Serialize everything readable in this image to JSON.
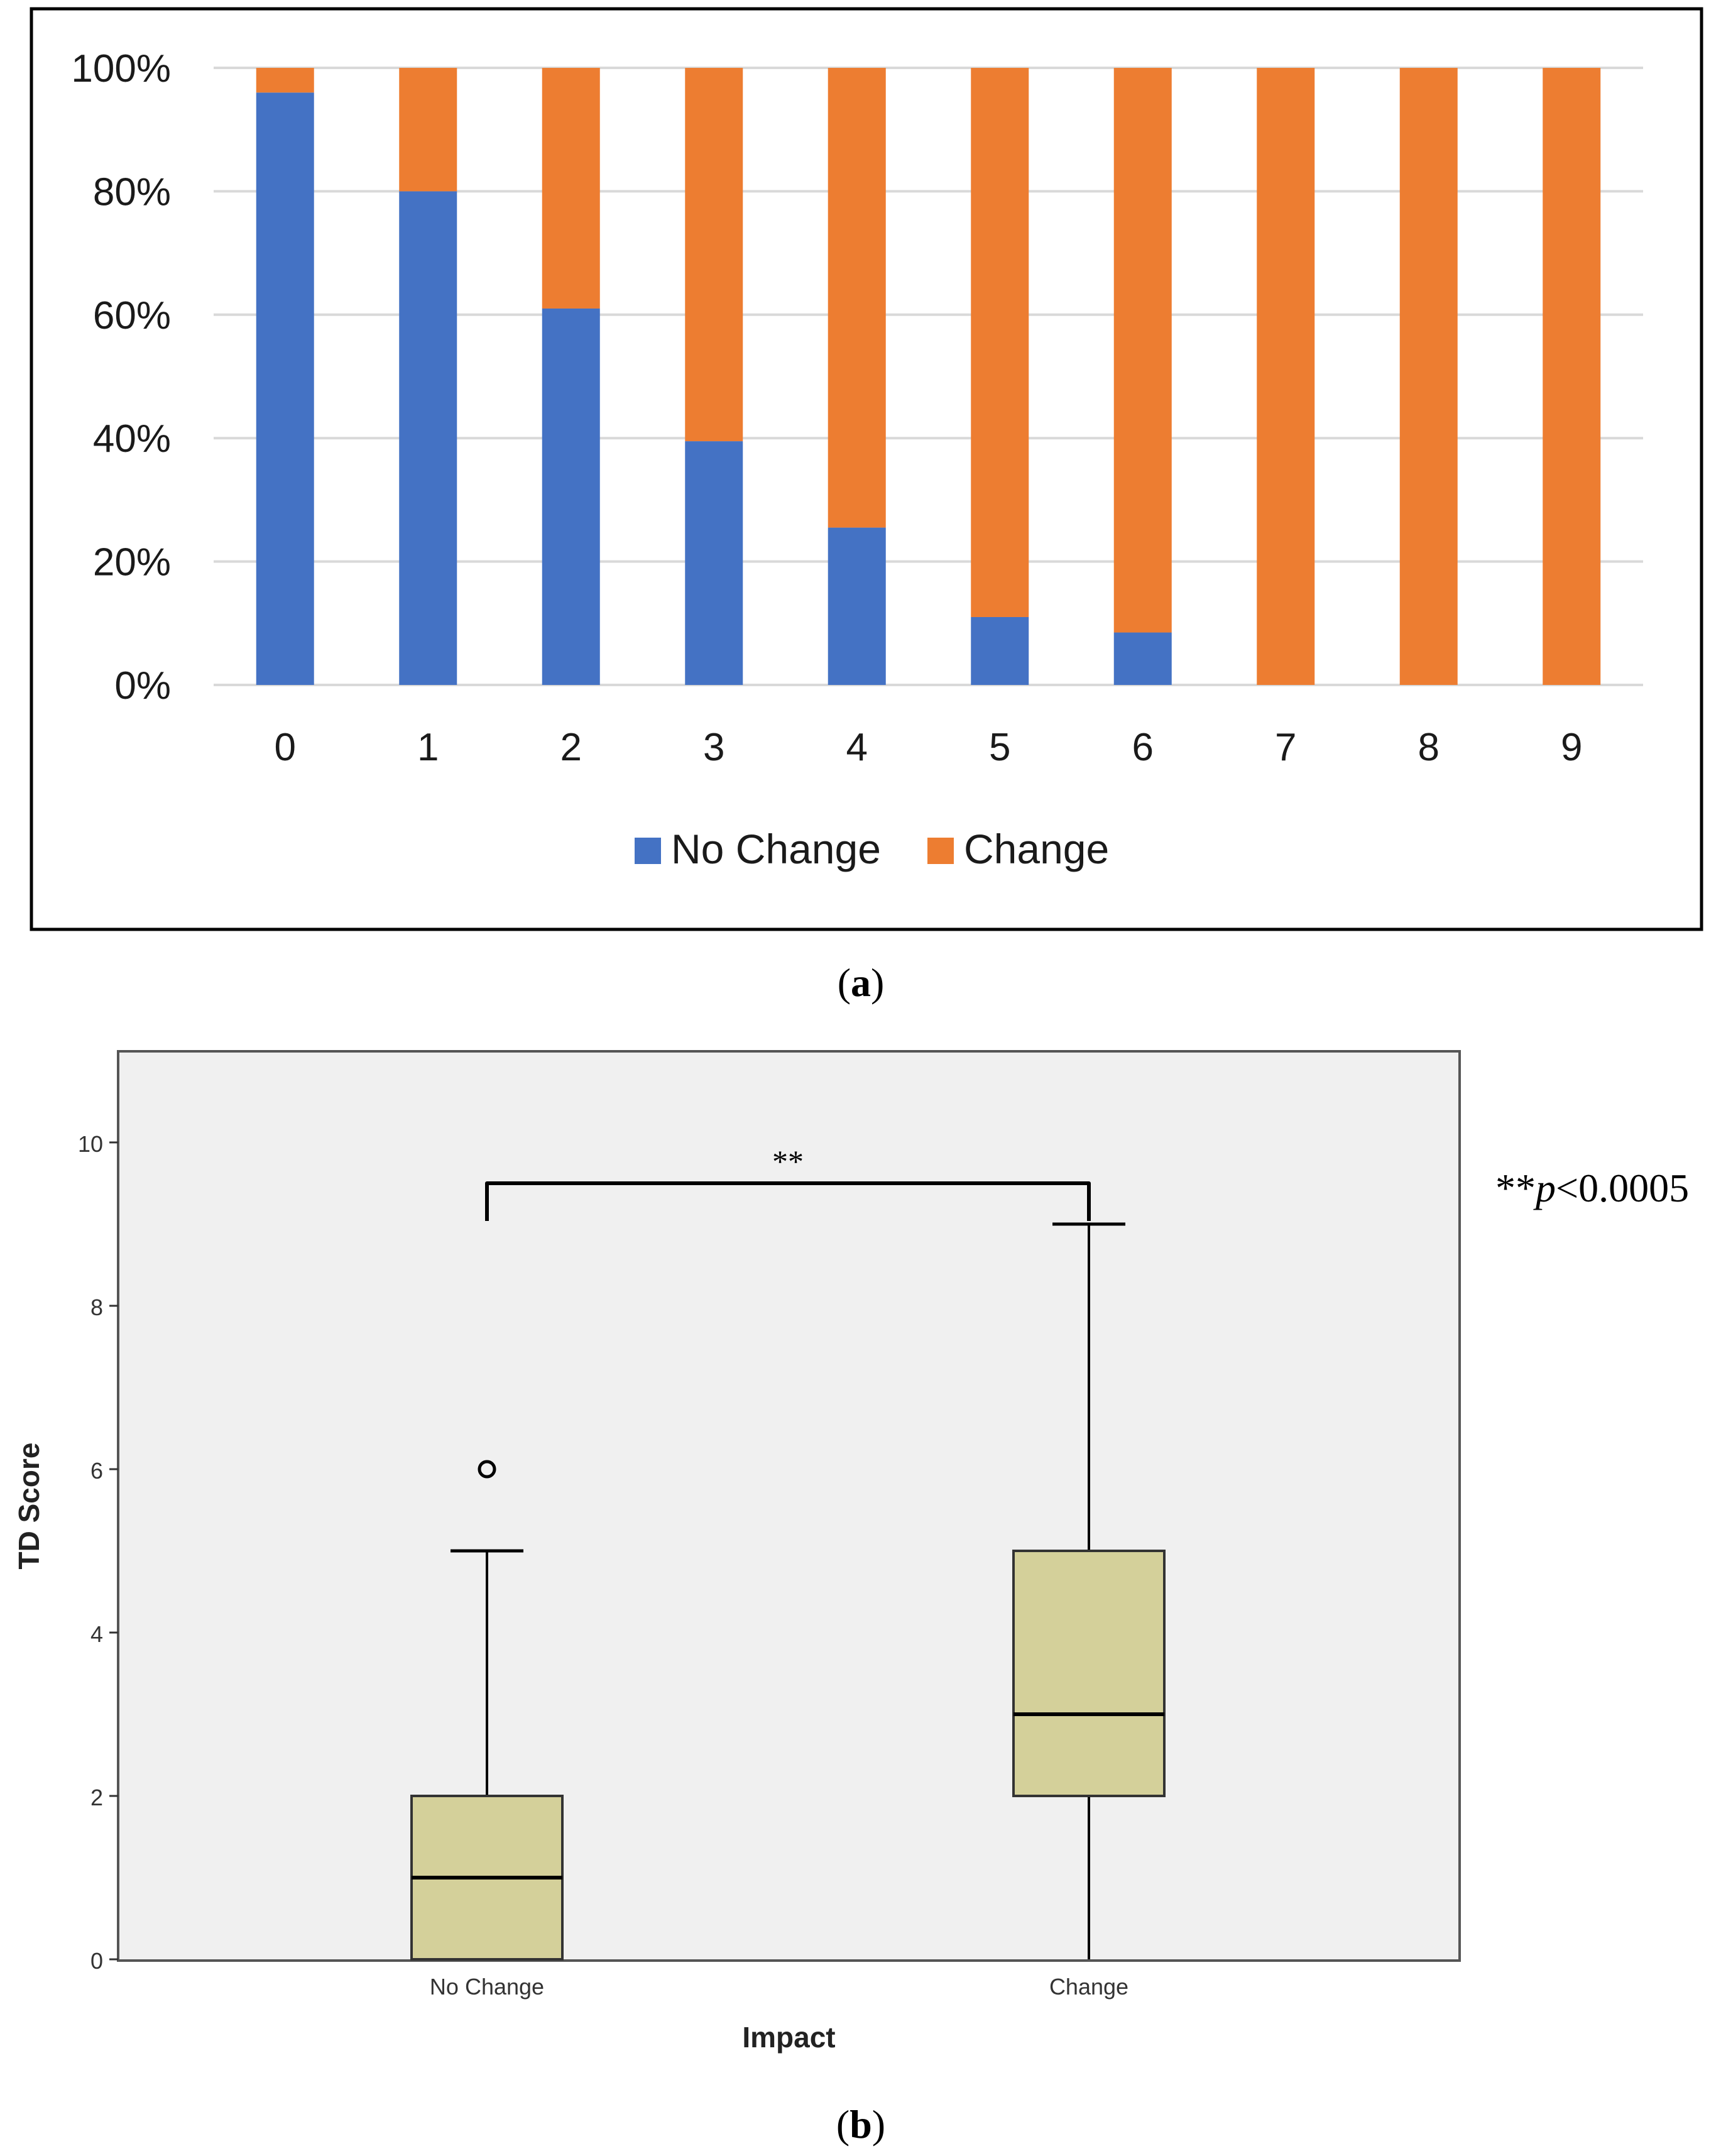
{
  "figure": {
    "panel_a_label_open": "(",
    "panel_a_label_letter": "a",
    "panel_a_label_close": ")",
    "panel_b_label_open": "(",
    "panel_b_label_letter": "b",
    "panel_b_label_close": ")"
  },
  "chart_data": [
    {
      "type": "bar",
      "stacked": true,
      "percent": true,
      "categories": [
        "0",
        "1",
        "2",
        "3",
        "4",
        "5",
        "6",
        "7",
        "8",
        "9"
      ],
      "series": [
        {
          "name": "No Change",
          "color": "#4472C4",
          "values": [
            96,
            80,
            61,
            39.5,
            25.5,
            11,
            8.5,
            0,
            0,
            0
          ]
        },
        {
          "name": "Change",
          "color": "#ED7D31",
          "values": [
            4,
            20,
            39,
            60.5,
            74.5,
            89,
            91.5,
            100,
            100,
            100
          ]
        }
      ],
      "ylim": [
        0,
        100
      ],
      "yticks": [
        "0%",
        "20%",
        "40%",
        "60%",
        "80%",
        "100%"
      ],
      "grid": true,
      "legend_position": "bottom-center",
      "title": "",
      "xlabel": "",
      "ylabel": ""
    },
    {
      "type": "box",
      "categories": [
        "No Change",
        "Change"
      ],
      "boxes": [
        {
          "name": "No Change",
          "whisker_low": 0,
          "q1": 0,
          "median": 1,
          "q3": 2,
          "whisker_high": 5,
          "outliers": [
            6
          ]
        },
        {
          "name": "Change",
          "whisker_low": 0,
          "q1": 2,
          "median": 3,
          "q3": 5,
          "whisker_high": 9,
          "outliers": []
        }
      ],
      "box_color": "#D4D09A",
      "background": "#F0F0F0",
      "ylim": [
        0,
        11
      ],
      "yticks": [
        "0",
        "2",
        "4",
        "6",
        "8",
        "10"
      ],
      "xlabel": "Impact",
      "ylabel": "TD Score",
      "significance": {
        "label": "**",
        "between": [
          "No Change",
          "Change"
        ],
        "y": 9.5
      },
      "annotation": {
        "stars": "**",
        "p_symbol": "p",
        "p_rest": "<0.0005"
      }
    }
  ]
}
